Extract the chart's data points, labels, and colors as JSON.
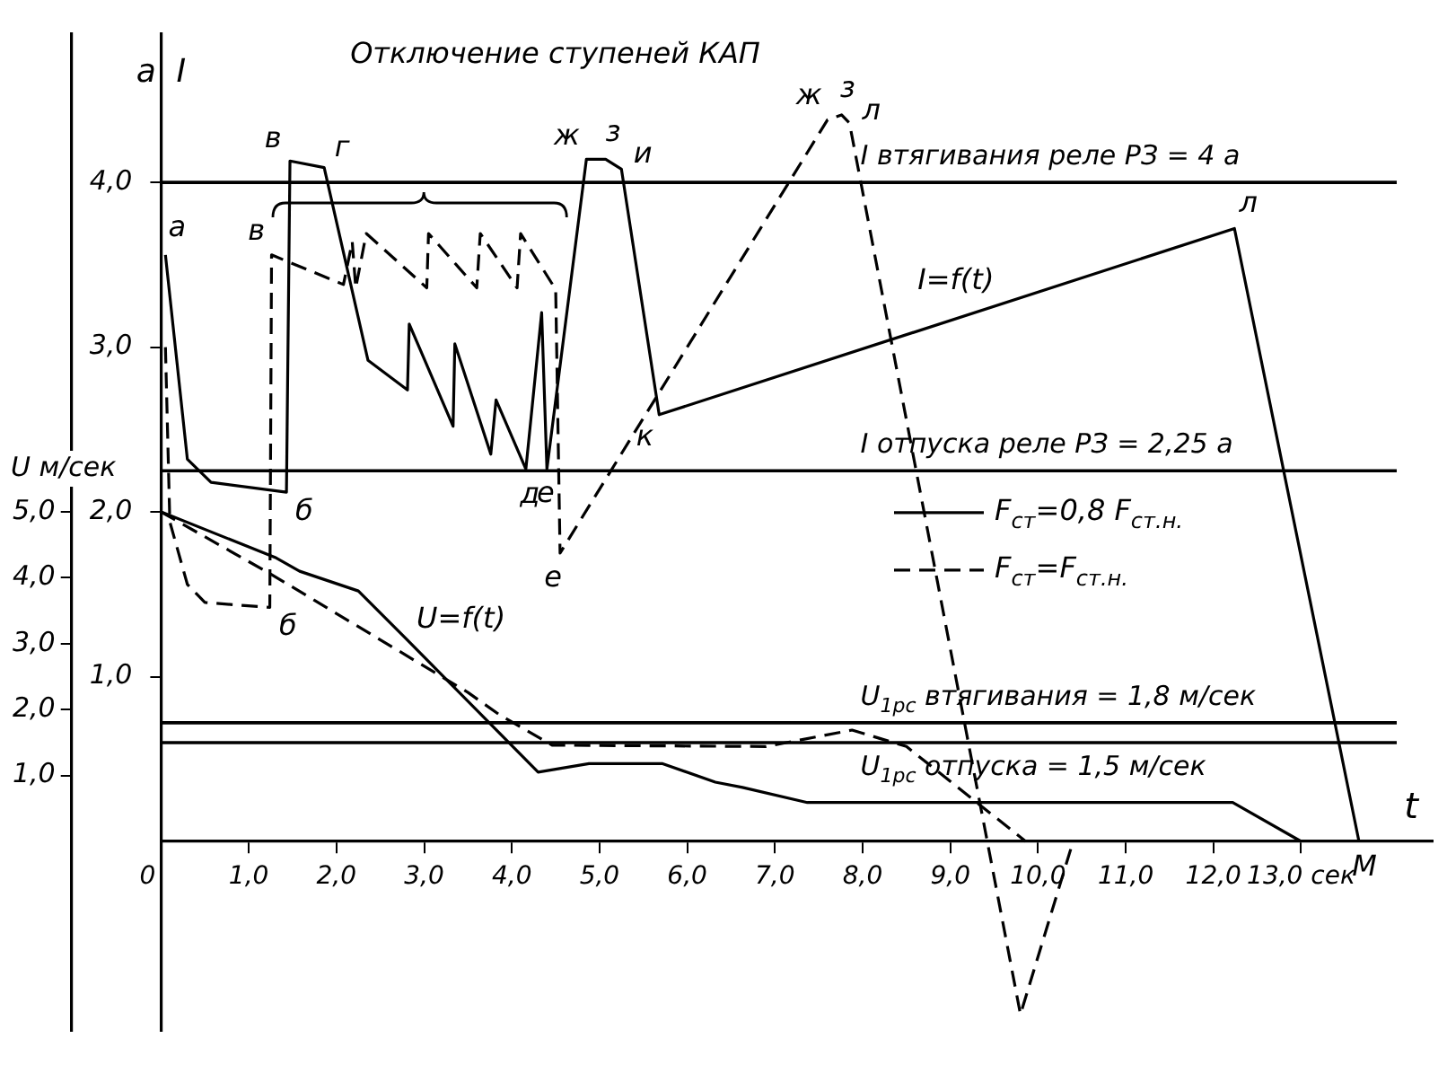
{
  "chart_data": {
    "type": "line",
    "xlabel": "t",
    "ylabel": "а  I",
    "y2label": "U м/сек",
    "xlim": [
      0,
      14.5
    ],
    "ylim": [
      -1.15,
      4.9
    ],
    "y2lim": [
      -2.875,
      12.25
    ],
    "xticks": [
      0,
      {
        "value": 1,
        "label": "1,0"
      },
      {
        "value": 2,
        "label": "2,0"
      },
      {
        "value": 3,
        "label": "3,0"
      },
      {
        "value": 4,
        "label": "4,0"
      },
      {
        "value": 5,
        "label": "5,0"
      },
      {
        "value": 6,
        "label": "6,0"
      },
      {
        "value": 7,
        "label": "7,0"
      },
      {
        "value": 8,
        "label": "8,0"
      },
      {
        "value": 9,
        "label": "9,0"
      },
      {
        "value": 10,
        "label": "10,0"
      },
      {
        "value": 11,
        "label": "11,0"
      },
      {
        "value": 12,
        "label": "12,0"
      },
      {
        "value": 13,
        "label": "13,0 сек"
      }
    ],
    "yticks": [
      {
        "value": 1,
        "label": "1,0"
      },
      {
        "value": 2,
        "label": "2,0"
      },
      {
        "value": 3,
        "label": "3,0"
      },
      {
        "value": 4,
        "label": "4,0"
      }
    ],
    "y2ticks": [
      {
        "value": 1,
        "label": "1,0"
      },
      {
        "value": 2,
        "label": "2,0"
      },
      {
        "value": 3,
        "label": "3,0"
      },
      {
        "value": 4,
        "label": "4,0"
      },
      {
        "value": 5,
        "label": "5,0"
      }
    ],
    "grid": false,
    "legend": "right",
    "marker": "none",
    "series": [
      {
        "name": "F$_{ст}$=0,8 F$_{ст.н.}$",
        "color": "#000000",
        "line_style": "solid",
        "x": [
          0.05,
          0.3,
          0.57,
          1.43,
          1.47,
          1.86,
          2.36,
          2.81,
          2.83,
          3.33,
          3.35,
          3.76,
          3.82,
          4.16,
          4.34,
          4.4,
          4.85,
          5.07,
          5.25,
          5.68,
          12.24,
          13.66
        ],
        "values": [
          3.56,
          2.32,
          2.18,
          2.12,
          4.13,
          4.09,
          2.92,
          2.74,
          3.14,
          2.52,
          3.02,
          2.35,
          2.68,
          2.26,
          3.21,
          2.26,
          4.14,
          4.14,
          4.08,
          2.59,
          3.72,
          0
        ]
      },
      {
        "name": "F$_{ст}$=F$_{ст.н.}$",
        "color": "#000000",
        "line_style": "dashed",
        "x": [
          0.05,
          0.1,
          0.3,
          0.5,
          1.24,
          1.26,
          2.08,
          2.18,
          2.22,
          2.34,
          3.03,
          3.05,
          3.6,
          3.64,
          4.06,
          4.1,
          4.5,
          4.55,
          7.6,
          7.76,
          7.85,
          9.8,
          10.4
        ],
        "values": [
          3.0,
          1.94,
          1.56,
          1.45,
          1.42,
          3.56,
          3.38,
          3.64,
          3.36,
          3.69,
          3.36,
          3.69,
          3.36,
          3.69,
          3.36,
          3.69,
          3.35,
          1.75,
          4.38,
          4.41,
          4.36,
          -1.05,
          0
        ]
      },
      {
        "color": "#000000",
        "line_style": "solid",
        "axis": "y2",
        "x": [
          0,
          1.3,
          1.58,
          2.25,
          2.79,
          4.3,
          4.88,
          5.72,
          6.32,
          6.63,
          7.37,
          12.22,
          13.0
        ],
        "values": [
          5.0,
          4.31,
          4.1,
          3.8,
          3.08,
          1.05,
          1.18,
          1.18,
          0.9,
          0.82,
          0.59,
          0.59,
          0
        ]
      },
      {
        "color": "#000000",
        "line_style": "dashed",
        "axis": "y2",
        "x": [
          0,
          1.26,
          3.5,
          3.86,
          4.46,
          6.9,
          7.88,
          8.5,
          9.86
        ],
        "values": [
          5.0,
          4.05,
          2.26,
          1.92,
          1.46,
          1.44,
          1.69,
          1.44,
          0
        ]
      }
    ],
    "ref_lines": [
      {
        "axis": "y",
        "value": 4,
        "label": "I втягивания реле РЗ = 4 а"
      },
      {
        "axis": "y",
        "value": 2.25,
        "label": "I отпуска реле РЗ = 2,25 а"
      },
      {
        "axis": "y2",
        "value": 1.8,
        "label": "U$_{1рс}$ втягивания = 1,8 м/сек"
      },
      {
        "axis": "y2",
        "value": 1.5,
        "label": "U$_{1рс}$ отпуска = 1,5 м/сек"
      }
    ],
    "annotations": [
      "Отключение ступеней КАП",
      {
        "text": "а",
        "x": 0.05,
        "y": 3.56
      },
      {
        "text": "б",
        "x": 1.43,
        "y": 2.12
      },
      {
        "text": "в",
        "x": 1.47,
        "y": 4.13
      },
      {
        "text": "г",
        "x": 1.86,
        "y": 4.09
      },
      {
        "text": "в",
        "x": 1.26,
        "y": 3.56
      },
      {
        "text": "б",
        "x": 1.24,
        "y": 1.42
      },
      {
        "text": "д",
        "x": 4.16,
        "y": 2.26
      },
      {
        "text": "е",
        "x": 4.4,
        "y": 2.26
      },
      {
        "text": "е",
        "x": 4.55,
        "y": 1.75
      },
      {
        "text": "ж",
        "x": 4.85,
        "y": 4.14
      },
      {
        "text": "з",
        "x": 5.07,
        "y": 4.14
      },
      {
        "text": "и",
        "x": 5.25,
        "y": 4.08
      },
      {
        "text": "к",
        "x": 5.68,
        "y": 2.59
      },
      {
        "text": "л",
        "x": 12.24,
        "y": 3.72
      },
      {
        "text": "ж",
        "x": 7.6,
        "y": 4.38
      },
      {
        "text": "з",
        "x": 7.76,
        "y": 4.41
      },
      {
        "text": "л",
        "x": 7.85,
        "y": 4.36
      },
      {
        "text": "М",
        "x": 13.66,
        "y": 0
      },
      {
        "text": "I=f(t)",
        "x": 9.19,
        "y": 3.19
      },
      {
        "text": "U=f(t)",
        "x": 3.0,
        "y": 1.12
      }
    ]
  }
}
